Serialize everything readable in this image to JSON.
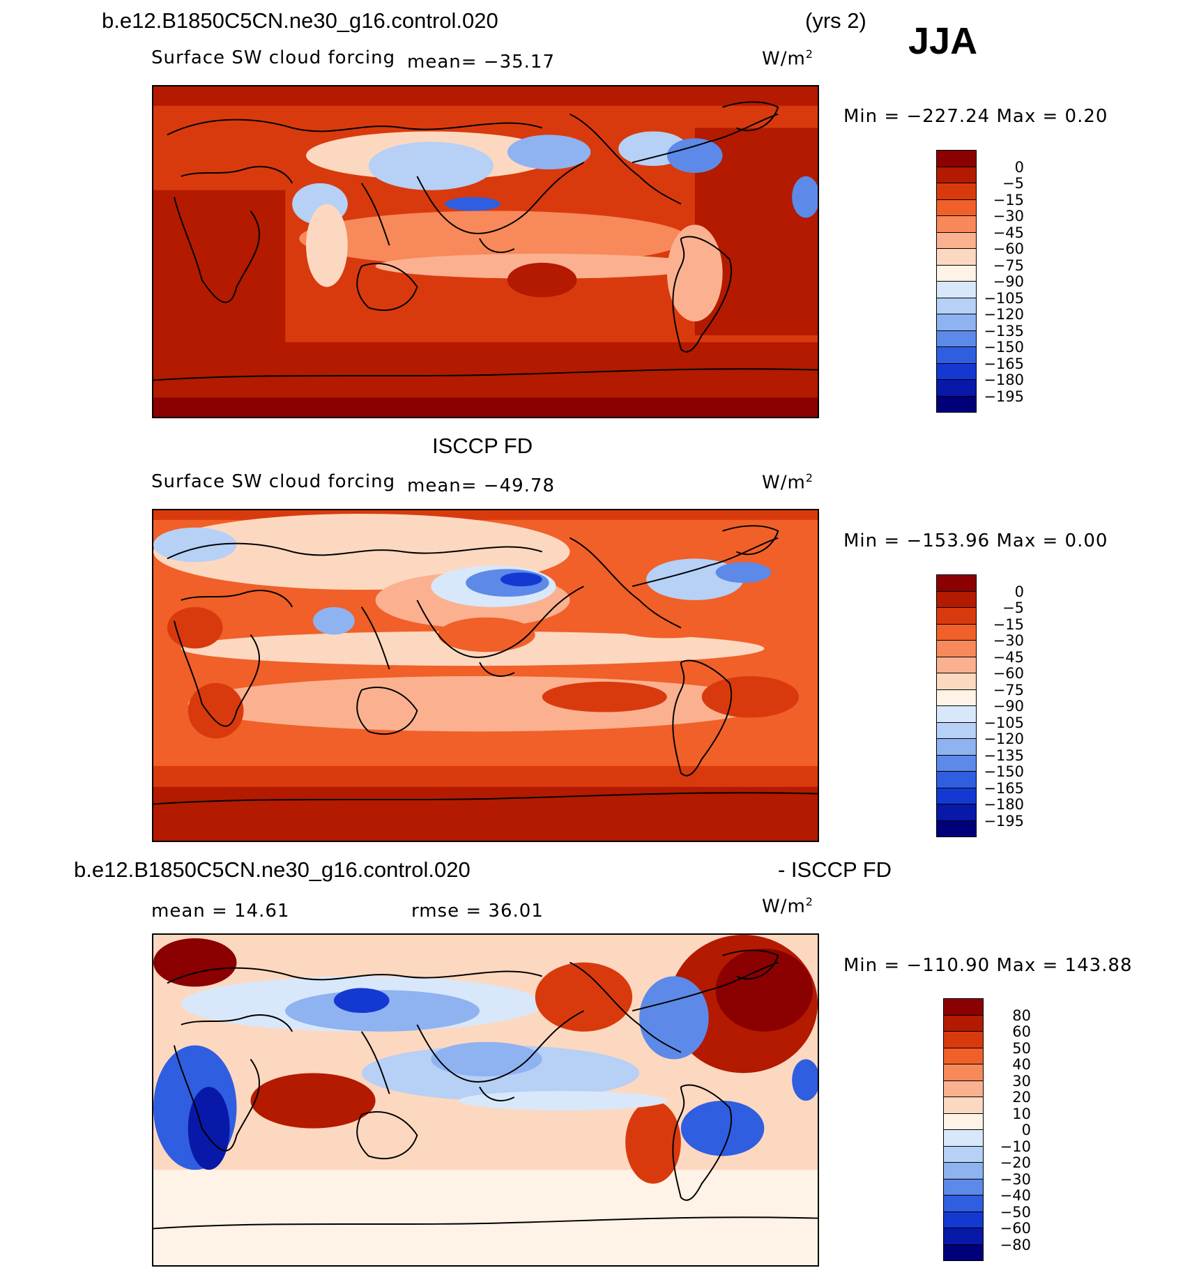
{
  "header": {
    "case_name": "b.e12.B1850C5CN.ne30_g16.control.020",
    "years": "(yrs 2)",
    "season": "JJA"
  },
  "panels": [
    {
      "id": "model",
      "subtitle": "",
      "variable": "Surface SW cloud forcing",
      "mean_label": "mean= −35.17",
      "units": "W/m",
      "units_sup": "2",
      "minmax": "Min = −227.24  Max =    0.20",
      "colorbar": {
        "ticks": [
          "0",
          "−5",
          "−15",
          "−30",
          "−45",
          "−60",
          "−75",
          "−90",
          "−105",
          "−120",
          "−135",
          "−150",
          "−165",
          "−180",
          "−195"
        ],
        "colors": [
          "#8b0000",
          "#b31a00",
          "#d93a0d",
          "#f06028",
          "#f8895a",
          "#fbb190",
          "#fdd8c0",
          "#fff2e6",
          "#d8e8fa",
          "#b6d0f6",
          "#8fb2f0",
          "#5d8ae8",
          "#2f5ee0",
          "#1439d2",
          "#0818a8",
          "#00007a"
        ]
      }
    },
    {
      "id": "obs",
      "subtitle": "ISCCP FD",
      "variable": "Surface SW cloud forcing",
      "mean_label": "mean= −49.78",
      "units": "W/m",
      "units_sup": "2",
      "minmax": "Min = −153.96  Max =    0.00",
      "colorbar": {
        "ticks": [
          "0",
          "−5",
          "−15",
          "−30",
          "−45",
          "−60",
          "−75",
          "−90",
          "−105",
          "−120",
          "−135",
          "−150",
          "−165",
          "−180",
          "−195"
        ],
        "colors": [
          "#8b0000",
          "#b31a00",
          "#d93a0d",
          "#f06028",
          "#f8895a",
          "#fbb190",
          "#fdd8c0",
          "#fff2e6",
          "#d8e8fa",
          "#b6d0f6",
          "#8fb2f0",
          "#5d8ae8",
          "#2f5ee0",
          "#1439d2",
          "#0818a8",
          "#00007a"
        ]
      }
    },
    {
      "id": "diff",
      "title_left": "b.e12.B1850C5CN.ne30_g16.control.020",
      "title_right": "- ISCCP FD",
      "mean_label": "mean =   14.61",
      "rmse_label": "rmse =   36.01",
      "units": "W/m",
      "units_sup": "2",
      "minmax": "Min = −110.90  Max = 143.88",
      "colorbar": {
        "ticks": [
          "80",
          "60",
          "50",
          "40",
          "30",
          "20",
          "10",
          "0",
          "−10",
          "−20",
          "−30",
          "−40",
          "−50",
          "−60",
          "−80"
        ],
        "colors": [
          "#8b0000",
          "#b31a00",
          "#d93a0d",
          "#f06028",
          "#f8895a",
          "#fbb190",
          "#fdd8c0",
          "#fff2e6",
          "#d8e8fa",
          "#b6d0f6",
          "#8fb2f0",
          "#5d8ae8",
          "#2f5ee0",
          "#1439d2",
          "#0818a8",
          "#00007a"
        ]
      }
    }
  ],
  "map_colors": {
    "ocean_model": "#d93a0d",
    "ocean_obs": "#f06028",
    "ocean_diff": "#fdd8c0",
    "polar": "#b31a00",
    "coast": "#000000"
  }
}
